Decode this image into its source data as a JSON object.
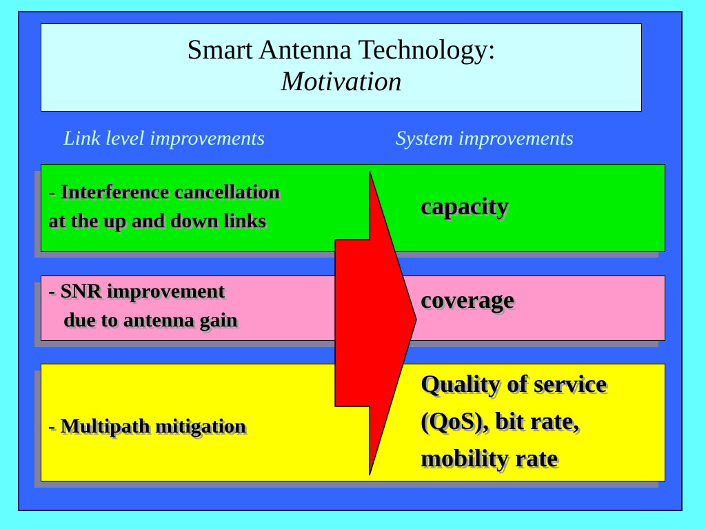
{
  "slide": {
    "title_line1": "Smart Antenna Technology:",
    "title_line2": "Motivation"
  },
  "headers": {
    "left": "Link level improvements",
    "right": "System improvements"
  },
  "rows": [
    {
      "left_line1": "- Interference cancellation",
      "left_line2": "at the up and down links",
      "right_line1": "capacity",
      "color": "#00ee00"
    },
    {
      "left_line1": "- SNR improvement",
      "left_line2": "due to antenna gain",
      "right_line1": "coverage",
      "color": "#ff99cc"
    },
    {
      "left_line1": "- Multipath mitigation",
      "right_line1": "Quality of service",
      "right_line2": "(QoS), bit rate,",
      "right_line3": "mobility rate",
      "color": "#ffff00"
    }
  ],
  "colors": {
    "background": "#66ffff",
    "panel": "#3366ff",
    "title_box": "#ccffff",
    "header_text": "#ccffff",
    "arrow": "#ff0000"
  },
  "icons": {
    "arrow": "red-right-arrow"
  }
}
